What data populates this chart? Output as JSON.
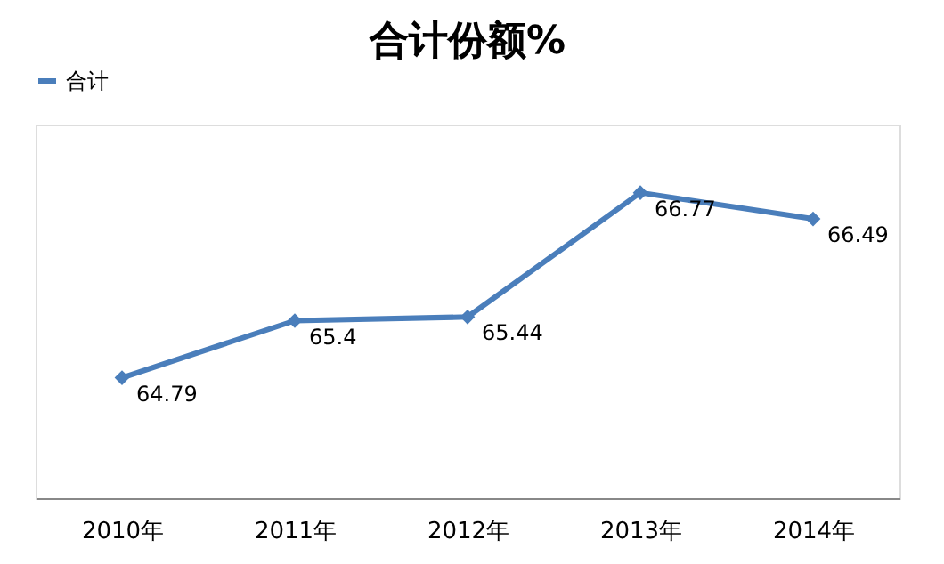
{
  "chart_data": {
    "type": "line",
    "title": "合计份额%",
    "categories": [
      "2010年",
      "2011年",
      "2012年",
      "2013年",
      "2014年"
    ],
    "series": [
      {
        "name": "合计",
        "color": "#4a7ebb",
        "values": [
          64.79,
          65.4,
          65.44,
          66.77,
          66.49
        ]
      }
    ],
    "ylim": [
      63.5,
      67.5
    ],
    "tick_labels": "x",
    "data_labels": true,
    "legend": "top",
    "marker": "diamond",
    "line_style": "solid",
    "grid": false
  }
}
